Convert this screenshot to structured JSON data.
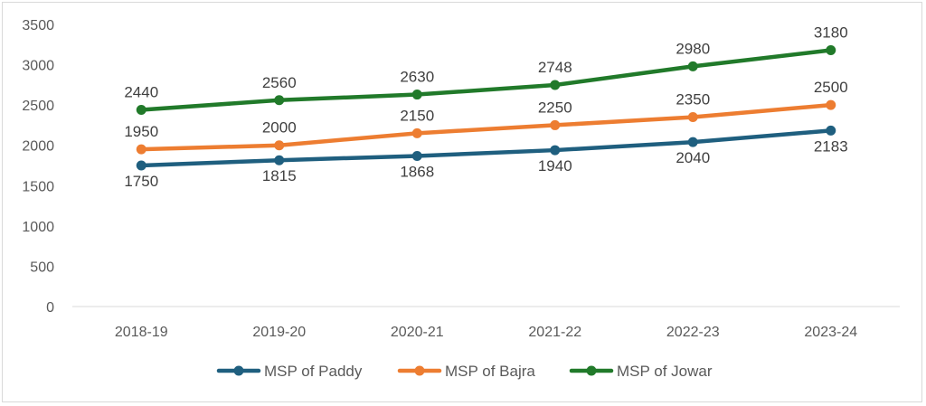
{
  "chart_data": {
    "type": "line",
    "title": "",
    "xlabel": "",
    "ylabel": "",
    "categories": [
      "2018-19",
      "2019-20",
      "2020-21",
      "2021-22",
      "2022-23",
      "2023-24"
    ],
    "ylim": [
      0,
      3500
    ],
    "yticks": [
      "0",
      "500",
      "1000",
      "1500",
      "2000",
      "2500",
      "3000",
      "3500"
    ],
    "grid": false,
    "legend_position": "bottom",
    "series": [
      {
        "name": "MSP of Paddy",
        "color": "#1f5f7f",
        "values": [
          1750,
          1815,
          1868,
          1940,
          2040,
          2183
        ],
        "labels": [
          "1750",
          "1815",
          "1868",
          "1940",
          "2040",
          "2183"
        ],
        "label_position": "below"
      },
      {
        "name": "MSP of Bajra",
        "color": "#ed7d31",
        "values": [
          1950,
          2000,
          2150,
          2250,
          2350,
          2500
        ],
        "labels": [
          "1950",
          "2000",
          "2150",
          "2250",
          "2350",
          "2500"
        ],
        "label_position": "above"
      },
      {
        "name": "MSP of Jowar",
        "color": "#217a2a",
        "values": [
          2440,
          2560,
          2630,
          2748,
          2980,
          3180
        ],
        "labels": [
          "2440",
          "2560",
          "2630",
          "2748",
          "2980",
          "3180"
        ],
        "label_position": "above"
      }
    ]
  }
}
